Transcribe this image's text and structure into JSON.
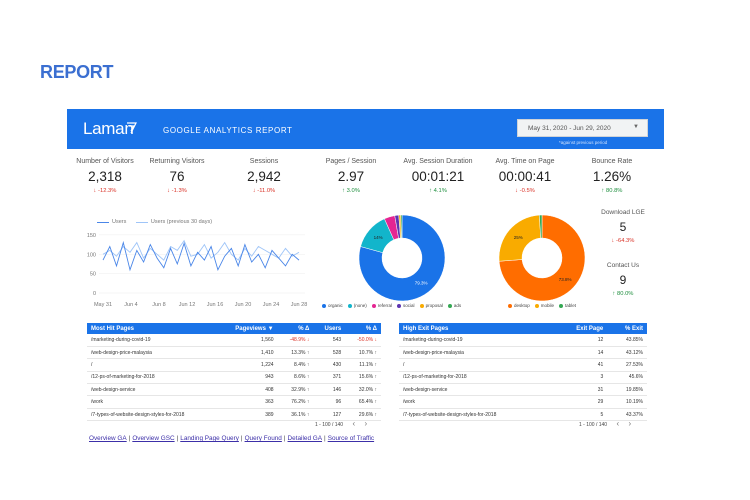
{
  "page_heading": "REPORT",
  "header": {
    "logo": "Laman",
    "title": "GOOGLE ANALYTICS REPORT",
    "date_range": "May 31, 2020 - Jun 29, 2020",
    "date_note": "*against previous period",
    "brand_color": "#1a73e8"
  },
  "kpis": [
    {
      "label": "Number of Visitors",
      "value": "2,318",
      "delta": "↓ -12.3%",
      "trend": "neg"
    },
    {
      "label": "Returning Visitors",
      "value": "76",
      "delta": "↓ -1.3%",
      "trend": "neg"
    },
    {
      "label": "Sessions",
      "value": "2,942",
      "delta": "↓ -11.0%",
      "trend": "neg"
    },
    {
      "label": "Pages / Session",
      "value": "2.97",
      "delta": "↑ 3.0%",
      "trend": "pos"
    },
    {
      "label": "Avg. Session Duration",
      "value": "00:01:21",
      "delta": "↑ 4.1%",
      "trend": "pos"
    },
    {
      "label": "Avg. Time on Page",
      "value": "00:00:41",
      "delta": "↓ -0.5%",
      "trend": "neg"
    },
    {
      "label": "Bounce Rate",
      "value": "1.26%",
      "delta": "↑ 80.8%",
      "trend": "pos"
    }
  ],
  "side_kpis": [
    {
      "label": "Download LGE",
      "value": "5",
      "delta": "↓ -64.3%",
      "trend": "neg"
    },
    {
      "label": "Contact Us",
      "value": "9",
      "delta": "↑ 80.0%",
      "trend": "pos"
    }
  ],
  "chart_data": [
    {
      "type": "line",
      "legend": [
        "Users",
        "Users (previous 30 days)"
      ],
      "x_ticks": [
        "May 31",
        "Jun 4",
        "Jun 8",
        "Jun 12",
        "Jun 16",
        "Jun 20",
        "Jun 24",
        "Jun 28"
      ],
      "y_ticks": [
        "150",
        "100",
        "50",
        "0"
      ],
      "ylim": [
        0,
        160
      ],
      "series": [
        {
          "name": "Users",
          "color": "#4a86e8",
          "values": [
            85,
            120,
            70,
            130,
            60,
            110,
            80,
            125,
            90,
            65,
            115,
            75,
            128,
            70,
            105,
            85,
            120,
            60,
            95,
            115,
            70,
            125,
            80,
            100,
            65,
            110,
            90,
            70,
            100,
            85
          ]
        },
        {
          "name": "Users (previous 30 days)",
          "color": "#9fc5f8",
          "values": [
            100,
            110,
            95,
            120,
            105,
            130,
            90,
            115,
            100,
            85,
            120,
            110,
            135,
            95,
            100,
            125,
            90,
            105,
            130,
            100,
            85,
            115,
            95,
            120,
            110,
            100,
            90,
            115,
            95,
            105
          ]
        }
      ]
    },
    {
      "type": "pie",
      "legend": [
        {
          "name": "organic",
          "color": "#1a73e8"
        },
        {
          "name": "(none)",
          "color": "#12b5cb"
        },
        {
          "name": "referral",
          "color": "#e52592"
        },
        {
          "name": "social",
          "color": "#5e35b1"
        },
        {
          "name": "proposal",
          "color": "#f9ab00"
        },
        {
          "name": "ads",
          "color": "#34a853"
        }
      ],
      "values": [
        79.3,
        14,
        4,
        1.5,
        0.7,
        0.5
      ],
      "data_labels": [
        "79.3%",
        "14%",
        "",
        "",
        "",
        ""
      ]
    },
    {
      "type": "pie",
      "legend": [
        {
          "name": "desktop",
          "color": "#ff6d00"
        },
        {
          "name": "mobile",
          "color": "#f9ab00"
        },
        {
          "name": "tablet",
          "color": "#34a853"
        }
      ],
      "values": [
        73.8,
        25.2,
        1
      ],
      "data_labels": [
        "73.8%",
        "25%",
        ""
      ]
    }
  ],
  "hit_table": {
    "headers": [
      "Most Hit Pages",
      "Pageviews ▼",
      "% Δ",
      "Users",
      "% Δ"
    ],
    "rows": [
      [
        "/marketing-during-covid-19",
        "1,560",
        "-48.9% ↓",
        "543",
        "-50.0% ↓"
      ],
      [
        "/web-design-price-malaysia",
        "1,410",
        "13.3% ↑",
        "528",
        "10.7% ↑"
      ],
      [
        "/",
        "1,224",
        "8.4% ↑",
        "430",
        "11.1% ↑"
      ],
      [
        "/12-ps-of-marketing-for-2018",
        "943",
        "8.6% ↑",
        "371",
        "15.6% ↑"
      ],
      [
        "/web-design-service",
        "408",
        "32.9% ↑",
        "146",
        "32.0% ↑"
      ],
      [
        "/work",
        "363",
        "76.2% ↑",
        "96",
        "65.4% ↑"
      ],
      [
        "/7-types-of-website-design-styles-for-2018",
        "389",
        "36.1% ↑",
        "127",
        "29.6% ↑"
      ]
    ],
    "pager": "1 - 100 / 140"
  },
  "exit_table": {
    "headers": [
      "High Exit Pages",
      "Exit Page",
      "% Exit"
    ],
    "rows": [
      [
        "/marketing-during-covid-19",
        "12",
        "43.85%"
      ],
      [
        "/web-design-price-malaysia",
        "14",
        "43.12%"
      ],
      [
        "/",
        "41",
        "27.53%"
      ],
      [
        "/12-ps-of-marketing-for-2018",
        "3",
        "45.6%"
      ],
      [
        "/web-design-service",
        "31",
        "19.85%"
      ],
      [
        "/work",
        "29",
        "10.19%"
      ],
      [
        "/7-types-of-website-design-styles-for-2018",
        "5",
        "43.37%"
      ]
    ],
    "pager": "1 - 100 / 140"
  },
  "footer_links": [
    "Overview GA",
    "Overview GSC",
    "Landing Page Query",
    "Query Found",
    "Detailed GA",
    "Source of Traffic"
  ]
}
